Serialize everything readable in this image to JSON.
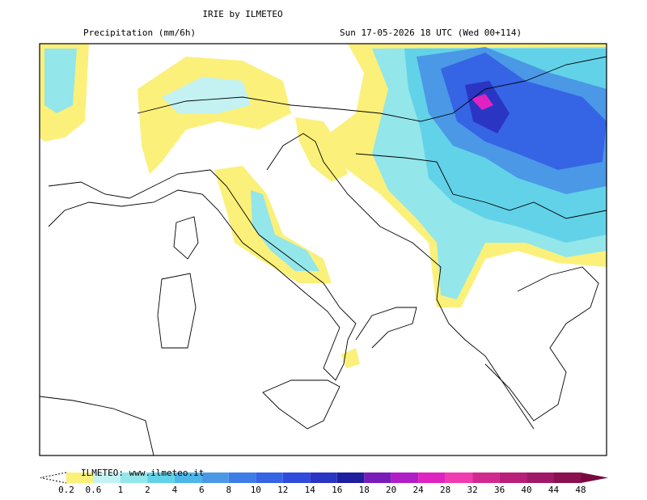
{
  "header": {
    "title": "IRIE by ILMETEO",
    "subtitle": "Precipitation (mm/6h)",
    "date": "Sun 17-05-2026 18 UTC (Wed 00+114)"
  },
  "legend": {
    "credit": "ILMETEO: www.ilmeteo.it",
    "levels": [
      0.2,
      0.6,
      1,
      2,
      4,
      6,
      8,
      10,
      12,
      14,
      16,
      18,
      20,
      24,
      28,
      32,
      36,
      40,
      44,
      48
    ],
    "colors": [
      "#fbf07a",
      "#c4f2f2",
      "#93e6ea",
      "#62d2e8",
      "#4cb6e8",
      "#4a98e6",
      "#3e7de6",
      "#3564e4",
      "#2e4bdc",
      "#2a35c4",
      "#1e1e9e",
      "#7a1cb8",
      "#b01ec8",
      "#e022c0",
      "#f03cb0",
      "#d02a90",
      "#b81e7a",
      "#a01868",
      "#8a1050",
      "#780a40"
    ]
  }
}
